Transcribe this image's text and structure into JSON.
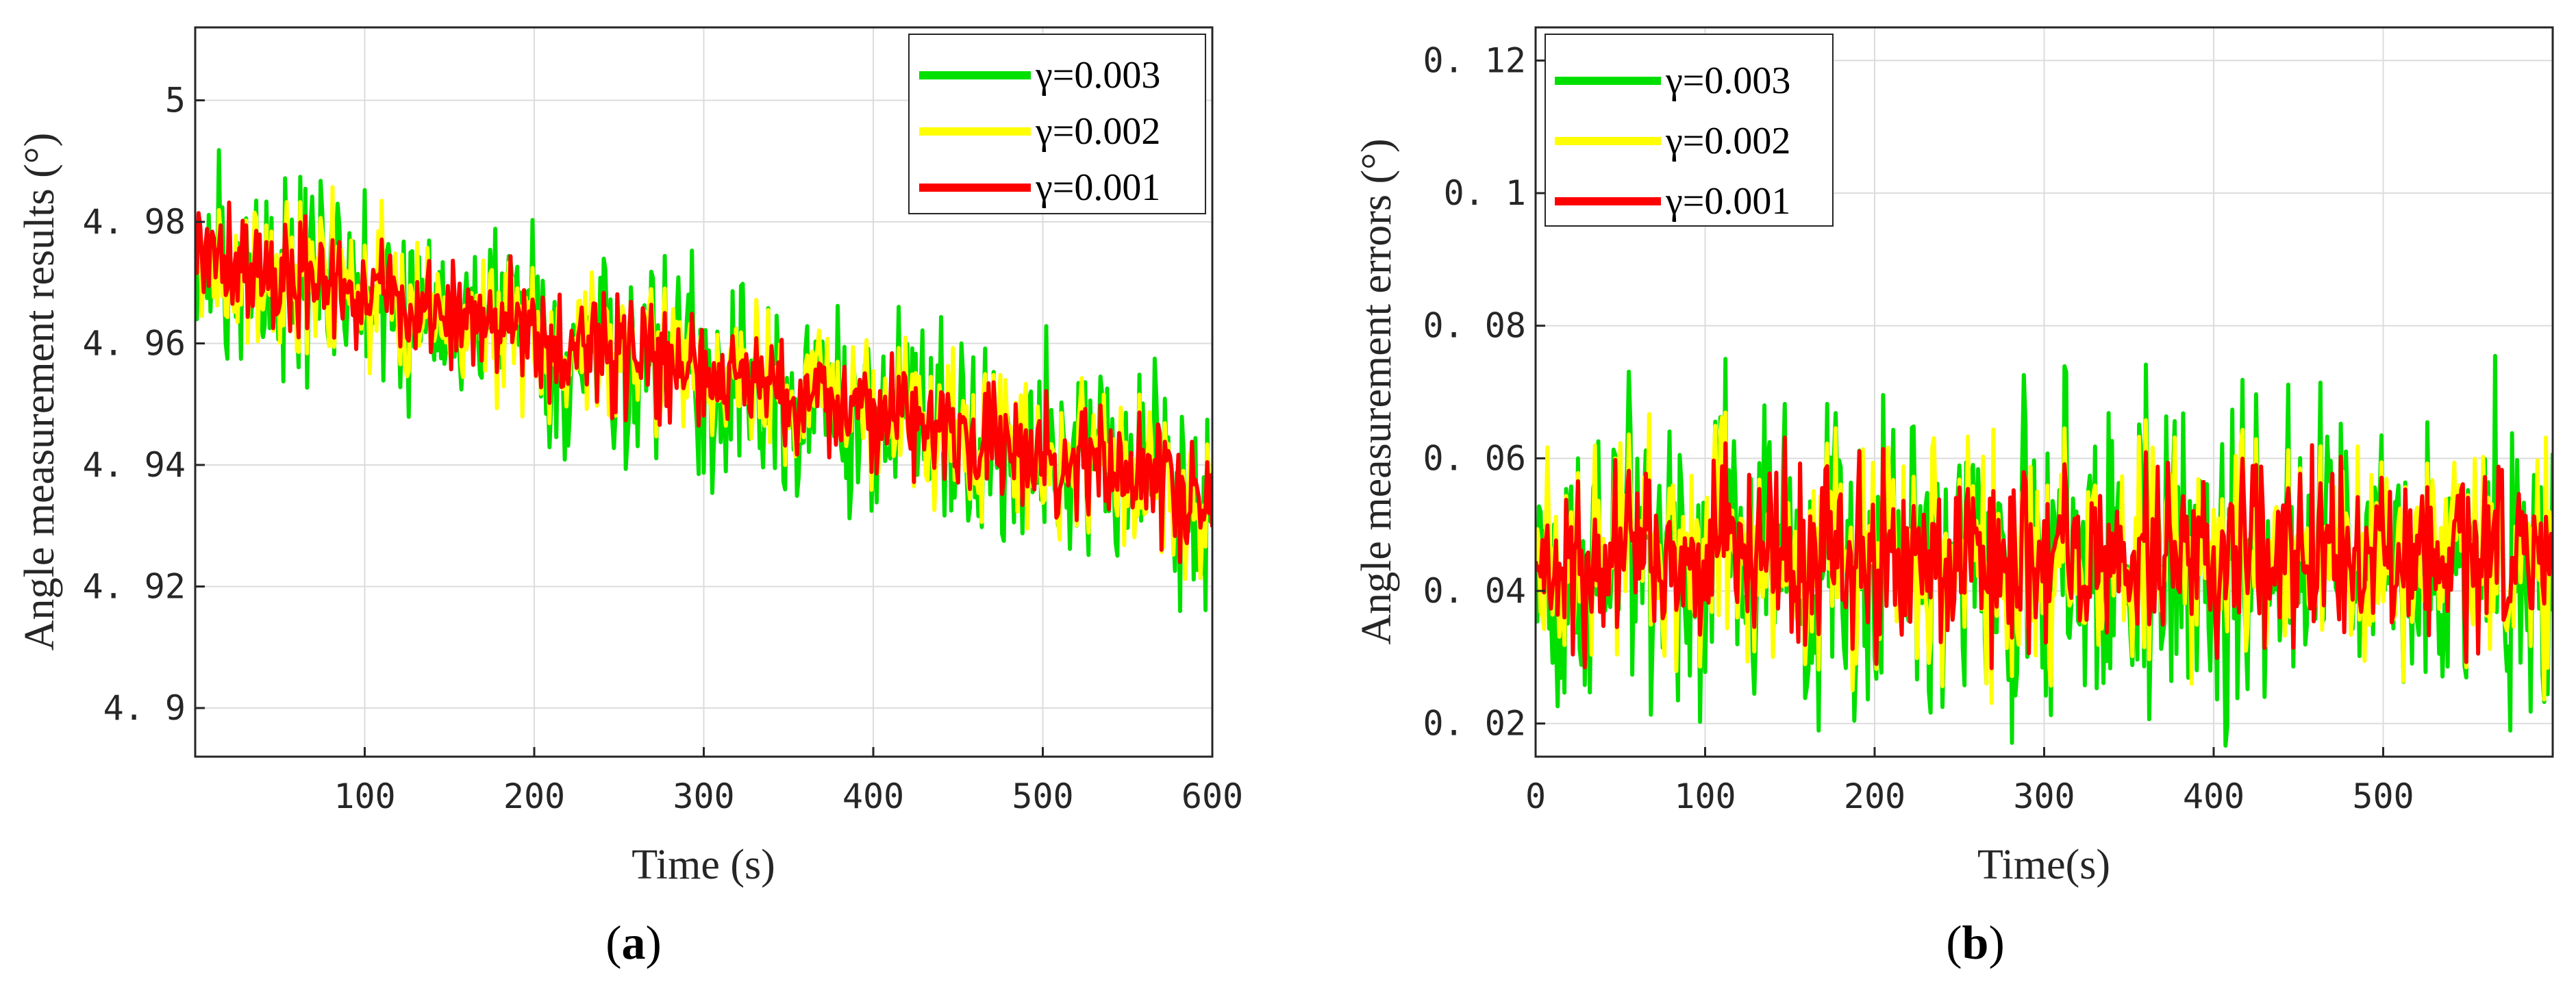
{
  "chart_data": [
    {
      "type": "line",
      "panel_label": "a",
      "title": "",
      "xlabel": "Time (s)",
      "ylabel": "Angle measurement results (°)",
      "xlim": [
        0,
        600
      ],
      "ylim": [
        4.892,
        5.012
      ],
      "xticks": [
        100,
        200,
        300,
        400,
        500,
        600
      ],
      "xtick_labels": [
        "100",
        "200",
        "300",
        "400",
        "500",
        "600"
      ],
      "yticks": [
        4.9,
        4.92,
        4.94,
        4.96,
        4.98,
        5.0
      ],
      "ytick_labels": [
        "4. 9",
        "4. 92",
        "4. 94",
        "4. 96",
        "4. 98",
        "5"
      ],
      "grid": true,
      "legend_position": "top-right",
      "series": [
        {
          "name": "γ=0.003",
          "color": "#00e000",
          "trend_start": 4.975,
          "trend_end": 4.935,
          "amplitude": 0.02
        },
        {
          "name": "γ=0.002",
          "color": "#ffff00",
          "trend_start": 4.975,
          "trend_end": 4.935,
          "amplitude": 0.015
        },
        {
          "name": "γ=0.001",
          "color": "#ff0000",
          "trend_start": 4.975,
          "trend_end": 4.935,
          "amplitude": 0.011
        }
      ]
    },
    {
      "type": "line",
      "panel_label": "b",
      "title": "",
      "xlabel": "Time(s)",
      "ylabel": "Angle measurement errors (°)",
      "xlim": [
        0,
        600
      ],
      "ylim": [
        0.015,
        0.125
      ],
      "xticks": [
        0,
        100,
        200,
        300,
        400,
        500
      ],
      "xtick_labels": [
        "0",
        "100",
        "200",
        "300",
        "400",
        "500"
      ],
      "yticks": [
        0.02,
        0.04,
        0.06,
        0.08,
        0.1,
        0.12
      ],
      "ytick_labels": [
        "0. 02",
        "0. 04",
        "0. 06",
        "0. 08",
        "0. 1",
        "0. 12"
      ],
      "grid": true,
      "legend_position": "top-left",
      "series": [
        {
          "name": "γ=0.003",
          "color": "#00e000",
          "trend_start": 0.045,
          "trend_end": 0.045,
          "amplitude": 0.027
        },
        {
          "name": "γ=0.002",
          "color": "#ffff00",
          "trend_start": 0.045,
          "trend_end": 0.045,
          "amplitude": 0.02
        },
        {
          "name": "γ=0.001",
          "color": "#ff0000",
          "trend_start": 0.045,
          "trend_end": 0.045,
          "amplitude": 0.016
        }
      ]
    }
  ]
}
